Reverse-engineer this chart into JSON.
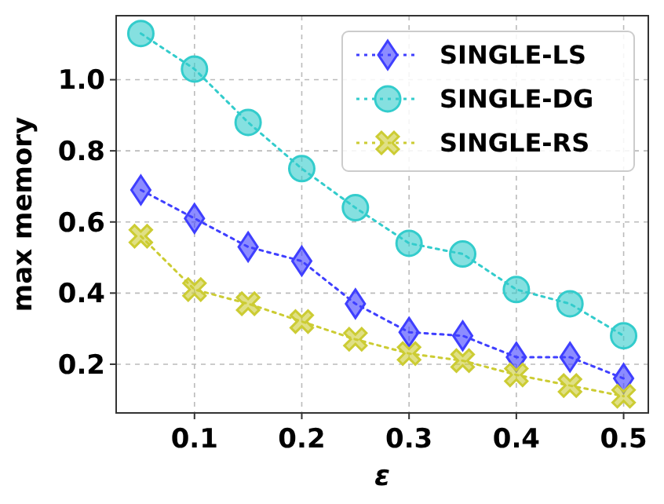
{
  "chart_data": {
    "type": "line",
    "xlabel": "ε",
    "ylabel": "max memory",
    "x": [
      0.05,
      0.1,
      0.15,
      0.2,
      0.25,
      0.3,
      0.35,
      0.4,
      0.45,
      0.5
    ],
    "xlim": [
      0.027,
      0.523
    ],
    "xticks": [
      0.1,
      0.2,
      0.3,
      0.4,
      0.5
    ],
    "ylim": [
      0.063,
      1.18
    ],
    "yticks": [
      0.2,
      0.4,
      0.6,
      0.8,
      {
        "value": 1,
        "label": "1.0"
      }
    ],
    "grid": true,
    "legend": "top right",
    "line_style": "dotted",
    "series": [
      {
        "name": "SINGLE-LS",
        "color": "#3f3fff",
        "marker": "diamond",
        "values": [
          0.69,
          0.61,
          0.53,
          0.49,
          0.37,
          0.29,
          0.28,
          0.22,
          0.22,
          0.16
        ]
      },
      {
        "name": "SINGLE-DG",
        "color": "#33cccc",
        "marker": "circle",
        "values": [
          1.13,
          1.03,
          0.88,
          0.75,
          0.64,
          0.54,
          0.51,
          0.41,
          0.37,
          0.28
        ]
      },
      {
        "name": "SINGLE-RS",
        "color": "#cccc33",
        "marker": "cross",
        "values": [
          0.56,
          0.41,
          0.37,
          0.32,
          0.27,
          0.23,
          0.21,
          0.17,
          0.14,
          0.11
        ]
      }
    ]
  }
}
